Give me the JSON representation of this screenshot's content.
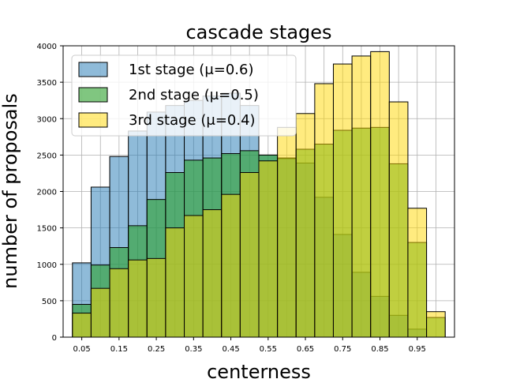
{
  "chart_data": {
    "type": "bar",
    "title": "cascade stages",
    "xlabel": "centerness",
    "ylabel": "number of proposals",
    "ylim": [
      0,
      4000
    ],
    "xlim": [
      0.0,
      1.05
    ],
    "bin_width": 0.05,
    "x": [
      0.05,
      0.1,
      0.15,
      0.2,
      0.25,
      0.3,
      0.35,
      0.4,
      0.45,
      0.5,
      0.55,
      0.6,
      0.65,
      0.7,
      0.75,
      0.8,
      0.85,
      0.9,
      0.95,
      1.0
    ],
    "x_ticks": [
      "0.05",
      "0.15",
      "0.25",
      "0.35",
      "0.45",
      "0.55",
      "0.65",
      "0.75",
      "0.85",
      "0.95"
    ],
    "x_tick_values": [
      0.05,
      0.15,
      0.25,
      0.35,
      0.45,
      0.55,
      0.65,
      0.75,
      0.85,
      0.95
    ],
    "y_ticks": [
      0,
      500,
      1000,
      1500,
      2000,
      2500,
      3000,
      3500,
      4000
    ],
    "grid": true,
    "legend_position": "top-left",
    "series": [
      {
        "name": "1st stage (μ=0.6)",
        "color": "#1f77b4",
        "alpha": 0.5,
        "values": [
          1020,
          2060,
          2480,
          2830,
          3090,
          3180,
          3250,
          3310,
          3350,
          3180,
          2500,
          2450,
          2390,
          1920,
          1410,
          890,
          560,
          300,
          110,
          0
        ]
      },
      {
        "name": "2nd stage (μ=0.5)",
        "color": "#2ca02c",
        "alpha": 0.6,
        "values": [
          450,
          990,
          1230,
          1530,
          1890,
          2260,
          2430,
          2460,
          2520,
          2560,
          2500,
          2460,
          2580,
          2650,
          2840,
          2870,
          2880,
          2380,
          1300,
          270
        ]
      },
      {
        "name": "3rd stage (μ=0.4)",
        "color": "#ffd700",
        "alpha": 0.5,
        "values": [
          330,
          670,
          940,
          1060,
          1080,
          1500,
          1670,
          1750,
          1960,
          2260,
          2420,
          2880,
          3070,
          3480,
          3750,
          3860,
          3920,
          3230,
          1770,
          350
        ]
      }
    ]
  }
}
